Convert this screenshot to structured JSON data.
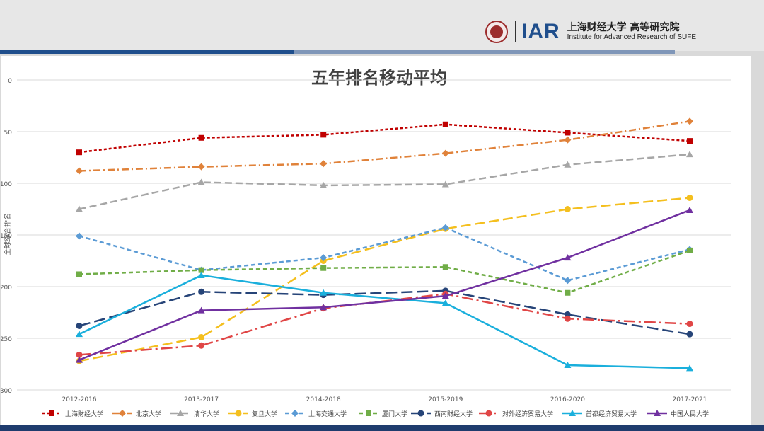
{
  "header": {
    "logo_iar": "IAR",
    "institute_cn": "上海财经大学 高等研究院",
    "institute_en": "Institute for Advanced Research of SUFE"
  },
  "colors": {
    "header_bg": "#e7e7e7",
    "band_dark": "#1f4e8c",
    "band_light": "#7f96b8",
    "footer": "#1f3c6e"
  },
  "chart_data": {
    "type": "line",
    "title": "五年排名移动平均",
    "xlabel": "",
    "ylabel": "全球综合排名",
    "categories": [
      "2012-2016",
      "2013-2017",
      "2014-2018",
      "2015-2019",
      "2016-2020",
      "2017-2021"
    ],
    "ylim": [
      0,
      300
    ],
    "y_inverted": true,
    "yticks": [
      0,
      50,
      100,
      150,
      200,
      250,
      300
    ],
    "grid": true,
    "legend_position": "bottom",
    "series": [
      {
        "name": "上海财经大学",
        "color": "#c00000",
        "dash": "4,3",
        "marker": "square",
        "values": [
          70,
          56,
          53,
          43,
          51,
          59
        ]
      },
      {
        "name": "北京大学",
        "color": "#e0823a",
        "dash": "10,4,2,4",
        "marker": "diamond",
        "values": [
          88,
          84,
          81,
          71,
          58,
          40
        ]
      },
      {
        "name": "清华大学",
        "color": "#a6a6a6",
        "dash": "10,5",
        "marker": "triangle",
        "values": [
          125,
          99,
          102,
          101,
          82,
          72
        ]
      },
      {
        "name": "复旦大学",
        "color": "#f4bf1e",
        "dash": "14,6",
        "marker": "circle",
        "values": [
          272,
          249,
          175,
          144,
          125,
          114
        ]
      },
      {
        "name": "上海交通大学",
        "color": "#5b9bd5",
        "dash": "6,4",
        "marker": "diamond",
        "values": [
          151,
          184,
          172,
          143,
          194,
          164
        ]
      },
      {
        "name": "厦门大学",
        "color": "#70ad47",
        "dash": "6,4",
        "marker": "square",
        "values": [
          188,
          184,
          182,
          181,
          206,
          165
        ]
      },
      {
        "name": "西南财经大学",
        "color": "#264478",
        "dash": "16,6",
        "marker": "circle",
        "values": [
          238,
          205,
          208,
          204,
          227,
          246
        ]
      },
      {
        "name": "对外经济贸易大学",
        "color": "#e04646",
        "dash": "16,5,3,5",
        "marker": "circle",
        "values": [
          266,
          257,
          221,
          207,
          231,
          236
        ]
      },
      {
        "name": "首都经济贸易大学",
        "color": "#1aafdc",
        "dash": "",
        "marker": "triangle",
        "values": [
          246,
          189,
          206,
          216,
          276,
          279
        ]
      },
      {
        "name": "中国人民大学",
        "color": "#7030a0",
        "dash": "",
        "marker": "triangle",
        "values": [
          271,
          223,
          220,
          209,
          172,
          126
        ]
      }
    ]
  }
}
